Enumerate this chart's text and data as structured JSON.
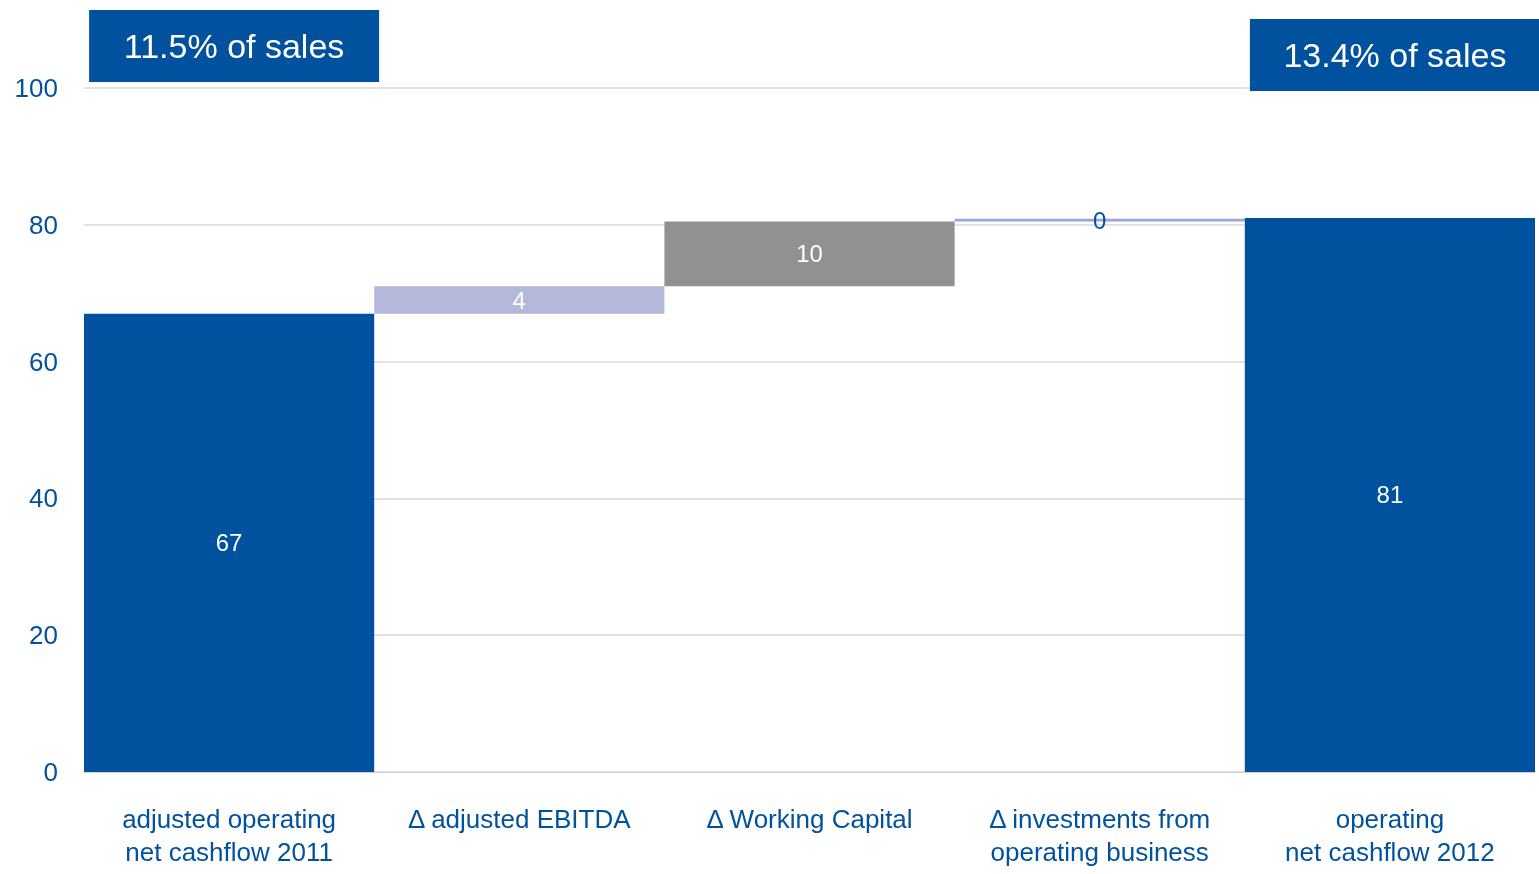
{
  "chart_data": {
    "type": "bar",
    "categories": [
      "adjusted operating\nnet cashflow 2011",
      "Δ adjusted EBITDA",
      "Δ Working Capital",
      "Δ investments from\noperating business",
      "operating\nnet cashflow 2012"
    ],
    "values": [
      67,
      4,
      9.5,
      0.4,
      81
    ],
    "base": [
      0,
      67,
      71,
      80.5,
      0
    ],
    "value_labels": [
      "67",
      "4",
      "10",
      "0",
      "81"
    ],
    "colors": [
      "#00519e",
      "#b4b9dc",
      "#919191",
      "#9aa5dc",
      "#00519e"
    ],
    "ylim": [
      0,
      100
    ],
    "yticks": [
      0,
      20,
      40,
      60,
      80,
      100
    ],
    "grid": "y",
    "annotations": [
      "11.5% of sales",
      "13.4% of sales"
    ]
  }
}
